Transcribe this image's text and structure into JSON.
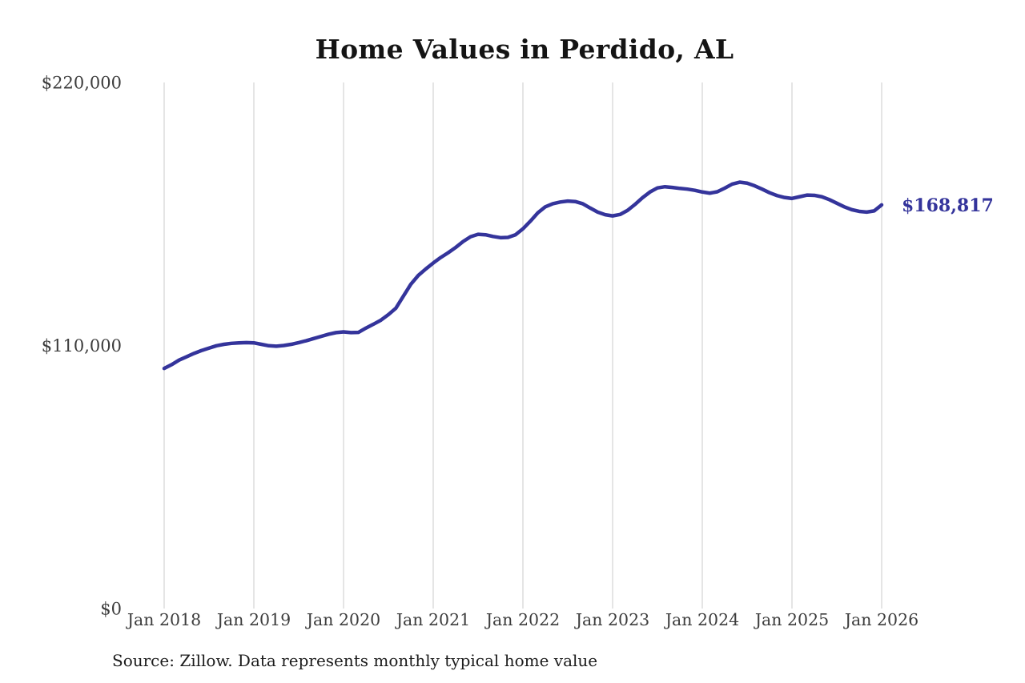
{
  "chart_data": {
    "type": "line",
    "title": "Home Values in Perdido, AL",
    "series_name": "Monthly typical home value (USD)",
    "x_interval": "monthly",
    "x_start": "Jan 2018",
    "x_end": "Jan 2026",
    "values": [
      100400,
      102000,
      103900,
      105300,
      106700,
      107900,
      108900,
      109900,
      110500,
      110900,
      111100,
      111200,
      111100,
      110500,
      109900,
      109700,
      110000,
      110500,
      111200,
      112000,
      112900,
      113800,
      114700,
      115400,
      115700,
      115400,
      115500,
      117300,
      118900,
      120600,
      122900,
      125600,
      130600,
      135600,
      139300,
      142000,
      144500,
      146800,
      148800,
      151000,
      153500,
      155500,
      156500,
      156300,
      155600,
      155100,
      155200,
      156300,
      158800,
      162000,
      165500,
      168000,
      169300,
      170000,
      170400,
      170200,
      169300,
      167500,
      165800,
      164700,
      164200,
      164800,
      166500,
      169000,
      171800,
      174200,
      175900,
      176400,
      176100,
      175700,
      175400,
      174900,
      174200,
      173700,
      174300,
      175800,
      177500,
      178300,
      177900,
      176800,
      175400,
      173900,
      172700,
      171900,
      171500,
      172200,
      172900,
      172800,
      172200,
      171000,
      169500,
      168000,
      166800,
      166100,
      165800,
      166300,
      168817
    ],
    "x_tick_labels": [
      "Jan 2018",
      "Jan 2019",
      "Jan 2020",
      "Jan 2021",
      "Jan 2022",
      "Jan 2023",
      "Jan 2024",
      "Jan 2025",
      "Jan 2026"
    ],
    "y_tick_values": [
      0,
      110000,
      220000
    ],
    "y_tick_labels": [
      "$0",
      "$110,000",
      "$220,000"
    ],
    "ylim": [
      0,
      220000
    ],
    "grid": "vertical-only",
    "legend": "none",
    "final_value": 168817,
    "final_value_label": "$168,817",
    "source_note": "Source: Zillow. Data represents monthly typical home value",
    "line_color": "#34349b",
    "gridline_color": "#cbcbcb",
    "tick_label_color": "#3d3d3d",
    "title_color": "#141414",
    "annotation_color": "#34349b"
  }
}
